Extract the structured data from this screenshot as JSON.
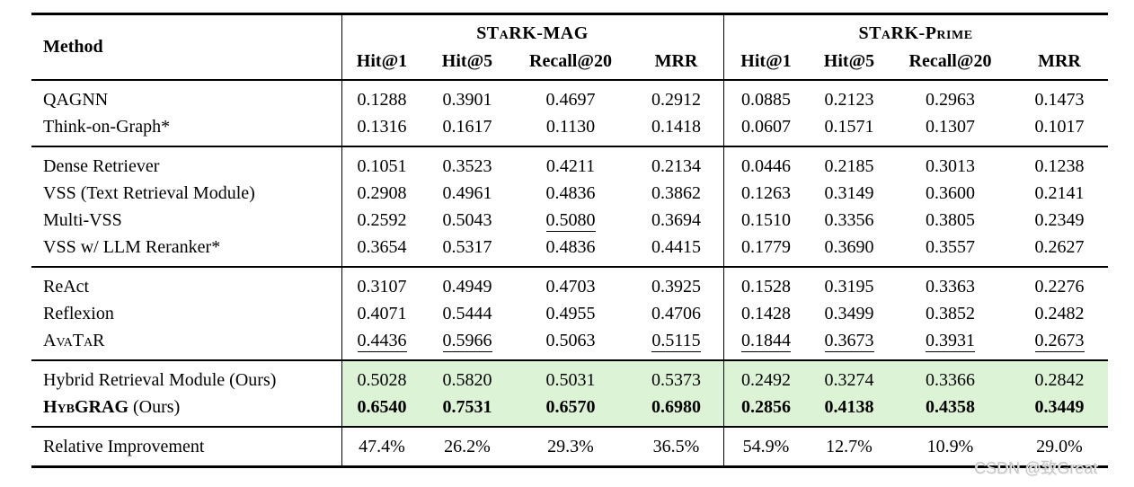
{
  "watermark": "CSDN @致Great",
  "colors": {
    "highlight": "#ddf3d6",
    "rule": "#000000",
    "watermark": "#c6c6c6"
  },
  "table": {
    "method_header": "Method",
    "groups": [
      {
        "label": "STaRK-MAG",
        "columns": [
          "Hit@1",
          "Hit@5",
          "Recall@20",
          "MRR"
        ]
      },
      {
        "label": "STaRK-Prime",
        "columns": [
          "Hit@1",
          "Hit@5",
          "Recall@20",
          "MRR"
        ]
      }
    ],
    "sections": [
      {
        "rows": [
          {
            "label_parts": [
              {
                "text": "QAGNN"
              }
            ],
            "values": [
              "0.1288",
              "0.3901",
              "0.4697",
              "0.2912",
              "0.0885",
              "0.2123",
              "0.2963",
              "0.1473"
            ],
            "underline": [],
            "highlight": false,
            "bold_values": false
          },
          {
            "label_parts": [
              {
                "text": "Think-on-Graph*"
              }
            ],
            "values": [
              "0.1316",
              "0.1617",
              "0.1130",
              "0.1418",
              "0.0607",
              "0.1571",
              "0.1307",
              "0.1017"
            ],
            "underline": [],
            "highlight": false,
            "bold_values": false
          }
        ]
      },
      {
        "rows": [
          {
            "label_parts": [
              {
                "text": "Dense Retriever"
              }
            ],
            "values": [
              "0.1051",
              "0.3523",
              "0.4211",
              "0.2134",
              "0.0446",
              "0.2185",
              "0.3013",
              "0.1238"
            ],
            "underline": [],
            "highlight": false,
            "bold_values": false
          },
          {
            "label_parts": [
              {
                "text": "VSS (Text Retrieval Module)"
              }
            ],
            "values": [
              "0.2908",
              "0.4961",
              "0.4836",
              "0.3862",
              "0.1263",
              "0.3149",
              "0.3600",
              "0.2141"
            ],
            "underline": [],
            "highlight": false,
            "bold_values": false
          },
          {
            "label_parts": [
              {
                "text": "Multi-VSS"
              }
            ],
            "values": [
              "0.2592",
              "0.5043",
              "0.5080",
              "0.3694",
              "0.1510",
              "0.3356",
              "0.3805",
              "0.2349"
            ],
            "underline": [
              2
            ],
            "highlight": false,
            "bold_values": false
          },
          {
            "label_parts": [
              {
                "text": "VSS w/ LLM Reranker*"
              }
            ],
            "values": [
              "0.3654",
              "0.5317",
              "0.4836",
              "0.4415",
              "0.1779",
              "0.3690",
              "0.3557",
              "0.2627"
            ],
            "underline": [],
            "highlight": false,
            "bold_values": false
          }
        ]
      },
      {
        "rows": [
          {
            "label_parts": [
              {
                "text": "ReAct"
              }
            ],
            "values": [
              "0.3107",
              "0.4949",
              "0.4703",
              "0.3925",
              "0.1528",
              "0.3195",
              "0.3363",
              "0.2276"
            ],
            "underline": [],
            "highlight": false,
            "bold_values": false
          },
          {
            "label_parts": [
              {
                "text": "Reflexion"
              }
            ],
            "values": [
              "0.4071",
              "0.5444",
              "0.4955",
              "0.4706",
              "0.1428",
              "0.3499",
              "0.3852",
              "0.2482"
            ],
            "underline": [],
            "highlight": false,
            "bold_values": false
          },
          {
            "label_parts": [
              {
                "text": "AvaTaR",
                "sc": true
              }
            ],
            "values": [
              "0.4436",
              "0.5966",
              "0.5063",
              "0.5115",
              "0.1844",
              "0.3673",
              "0.3931",
              "0.2673"
            ],
            "underline": [
              0,
              1,
              3,
              4,
              5,
              6,
              7
            ],
            "highlight": false,
            "bold_values": false
          }
        ]
      },
      {
        "rows": [
          {
            "label_parts": [
              {
                "text": "Hybrid Retrieval Module (Ours)"
              }
            ],
            "values": [
              "0.5028",
              "0.5820",
              "0.5031",
              "0.5373",
              "0.2492",
              "0.3274",
              "0.3366",
              "0.2842"
            ],
            "underline": [],
            "highlight": true,
            "bold_values": false
          },
          {
            "label_parts": [
              {
                "text": "HybGRAG",
                "sc": true,
                "bold": true
              },
              {
                "text": " (Ours)"
              }
            ],
            "values": [
              "0.6540",
              "0.7531",
              "0.6570",
              "0.6980",
              "0.2856",
              "0.4138",
              "0.4358",
              "0.3449"
            ],
            "underline": [],
            "highlight": true,
            "bold_values": true
          }
        ]
      },
      {
        "rows": [
          {
            "label_parts": [
              {
                "text": "Relative Improvement"
              }
            ],
            "values": [
              "47.4%",
              "26.2%",
              "29.3%",
              "36.5%",
              "54.9%",
              "12.7%",
              "10.9%",
              "29.0%"
            ],
            "underline": [],
            "highlight": false,
            "bold_values": false
          }
        ]
      }
    ]
  }
}
